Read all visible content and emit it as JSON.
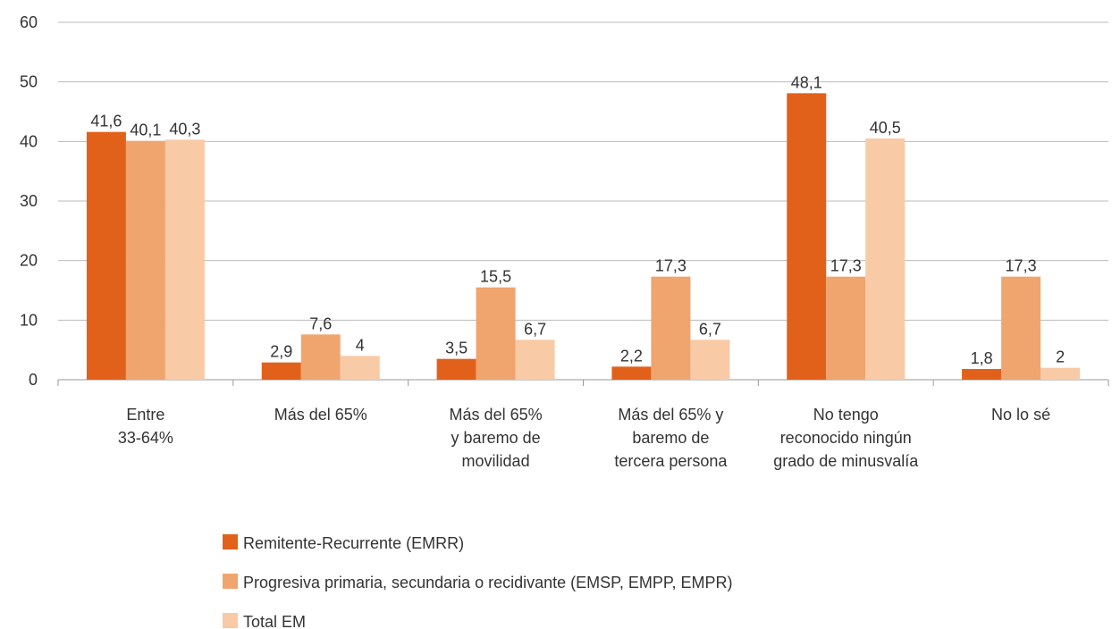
{
  "chart_data": {
    "type": "bar",
    "categories": [
      "Entre\n33-64%",
      "Más del 65%",
      "Más del 65%\ny baremo de\nmovilidad",
      "Más del 65% y\nbaremo de\ntercera persona",
      "No tengo\nreconocido ningún\ngrado de minusvalía",
      "No lo sé"
    ],
    "series": [
      {
        "name": "Remitente-Recurrente (EMRR)",
        "color": "#e2611a",
        "values": [
          41.6,
          2.9,
          3.5,
          2.2,
          48.1,
          1.8
        ],
        "value_labels": [
          "41,6",
          "2,9",
          "3,5",
          "2,2",
          "48,1",
          "1,8"
        ]
      },
      {
        "name": "Progresiva primaria, secundaria o recidivante (EMSP, EMPP, EMPR)",
        "color": "#f0a46e",
        "values": [
          40.1,
          7.6,
          15.5,
          17.3,
          17.3,
          17.3
        ],
        "value_labels": [
          "40,1",
          "7,6",
          "15,5",
          "17,3",
          "17,3",
          "17,3"
        ]
      },
      {
        "name": "Total EM",
        "color": "#f8caa6",
        "values": [
          40.3,
          4,
          6.7,
          6.7,
          40.5,
          2
        ],
        "value_labels": [
          "40,3",
          "4",
          "6,7",
          "6,7",
          "40,5",
          "2"
        ]
      }
    ],
    "ylim": [
      0,
      60
    ],
    "yticks": [
      0,
      10,
      20,
      30,
      40,
      50,
      60
    ],
    "grid": true
  }
}
